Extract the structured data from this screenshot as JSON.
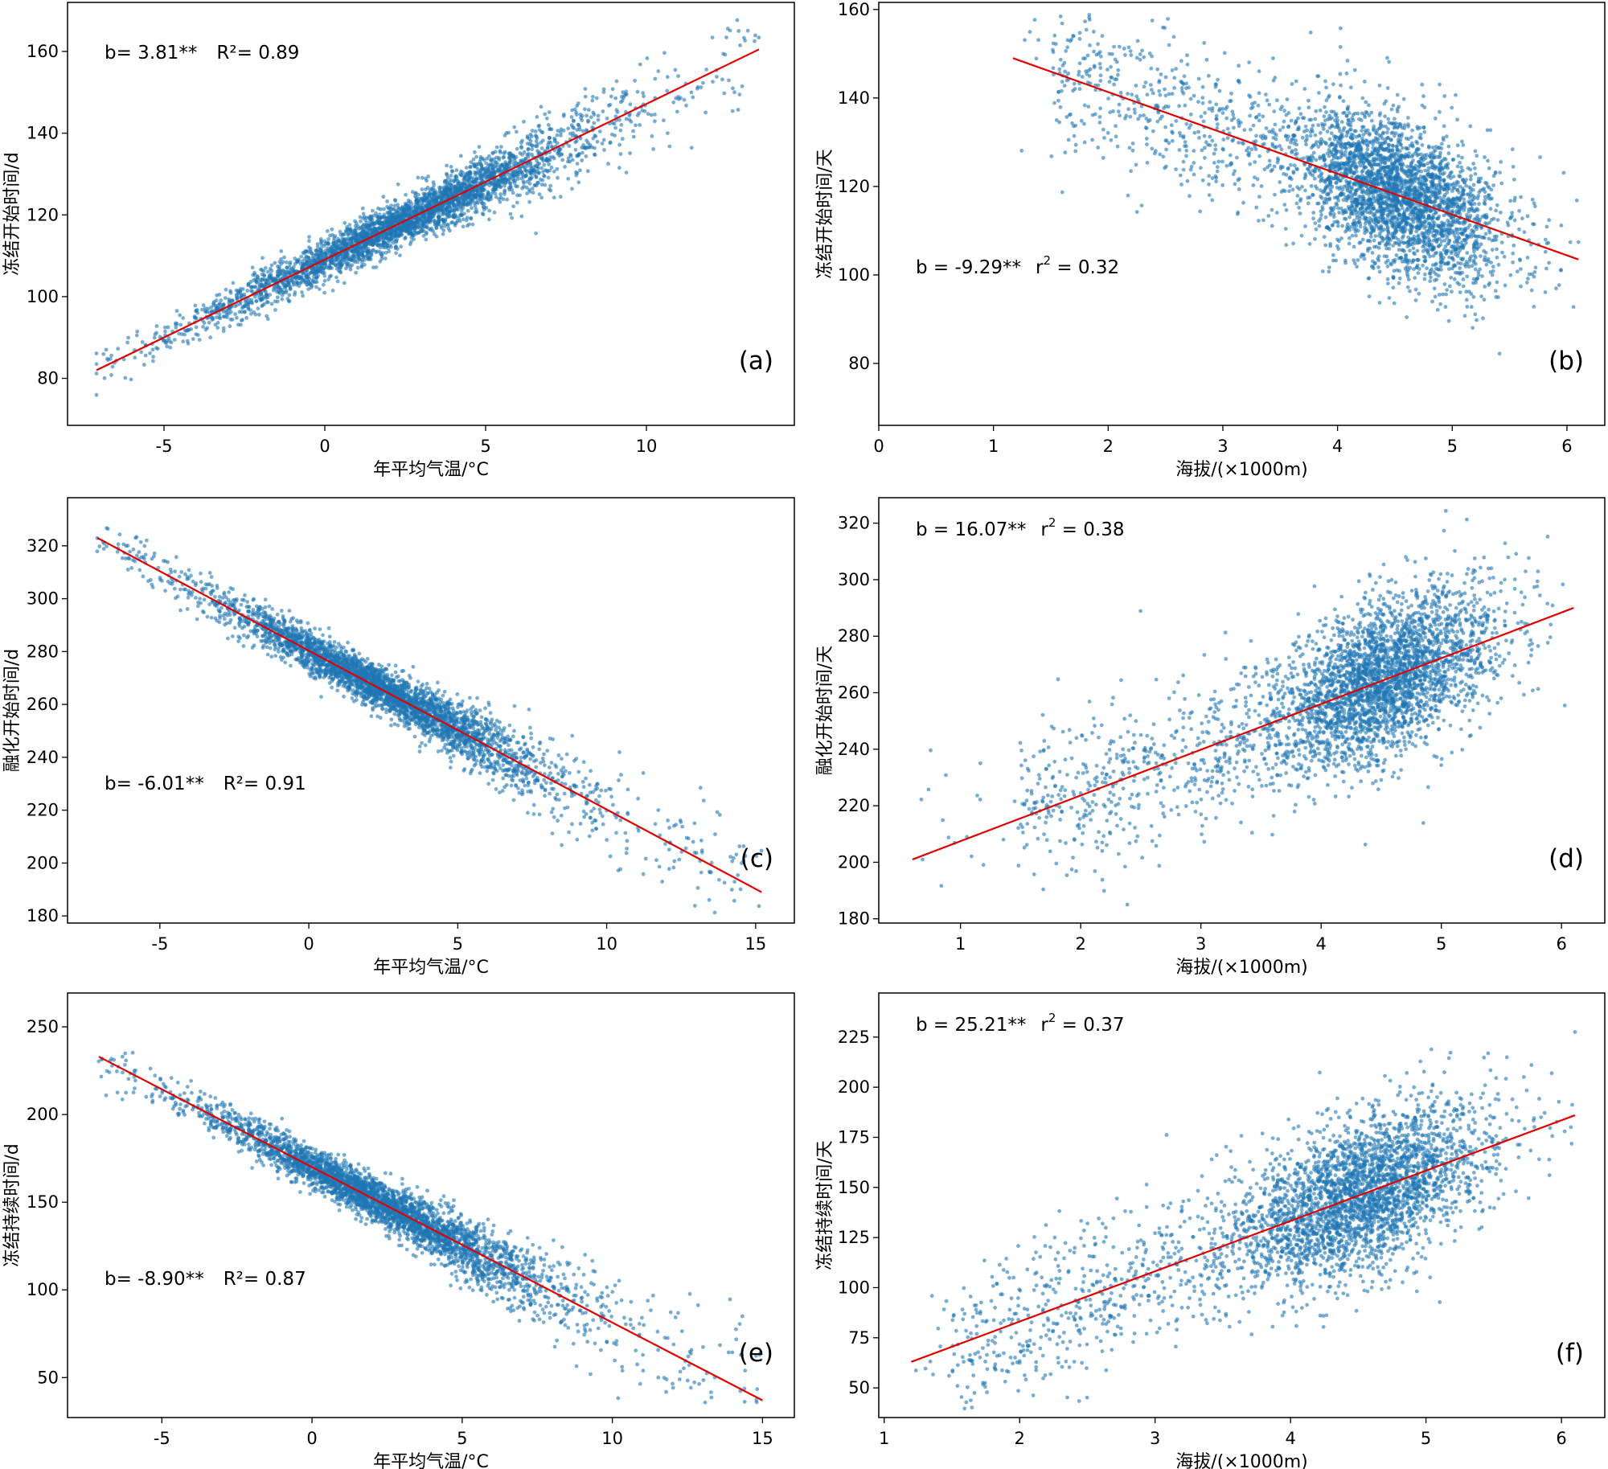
{
  "chart_data": [
    {
      "id": "a",
      "type": "scatter",
      "panel_label": "(a)",
      "xlabel": "年平均气温/°C",
      "ylabel": "冻结开始时间/d",
      "annotation": {
        "b": "b= 3.81**",
        "r2": "R²= 0.89"
      },
      "xlim": [
        -8.0,
        14.6
      ],
      "ylim": [
        68.5,
        172
      ],
      "xticks": [
        -5,
        0,
        5,
        10
      ],
      "yticks": [
        80,
        100,
        120,
        140,
        160
      ],
      "fit_line": [
        [
          -7.1,
          82
        ],
        [
          13.5,
          160.5
        ]
      ],
      "point_color": "#1f77b4",
      "line_color": "#e00000"
    },
    {
      "id": "b",
      "type": "scatter",
      "panel_label": "(b)",
      "xlabel": "海拔/(×1000m)",
      "ylabel": "冻结开始时间/天",
      "annotation": {
        "b": "b = -9.29**",
        "r2_base": "r",
        "r2_sup": "2",
        "r2_val": " = 0.32"
      },
      "xlim": [
        0,
        6.33
      ],
      "ylim": [
        66,
        161.6
      ],
      "xticks": [
        0,
        1,
        2,
        3,
        4,
        5,
        6
      ],
      "yticks": [
        80,
        100,
        120,
        140,
        160
      ],
      "fit_line": [
        [
          1.17,
          149
        ],
        [
          6.1,
          103.5
        ]
      ],
      "point_color": "#1f77b4",
      "line_color": "#e00000"
    },
    {
      "id": "c",
      "type": "scatter",
      "panel_label": "(c)",
      "xlabel": "年平均气温/°C",
      "ylabel": "融化开始时间/d",
      "annotation": {
        "b": "b= -6.01**",
        "r2": "R²= 0.91"
      },
      "xlim": [
        -8.1,
        16.3
      ],
      "ylim": [
        177.3,
        338.2
      ],
      "xticks": [
        -5,
        0,
        5,
        10,
        15
      ],
      "yticks": [
        180,
        200,
        220,
        240,
        260,
        280,
        300,
        320
      ],
      "fit_line": [
        [
          -7.1,
          323
        ],
        [
          15.2,
          189
        ]
      ],
      "point_color": "#1f77b4",
      "line_color": "#e00000"
    },
    {
      "id": "d",
      "type": "scatter",
      "panel_label": "(d)",
      "xlabel": "海拔/(×1000m)",
      "ylabel": "融化开始时间/天",
      "annotation": {
        "b": "b = 16.07**",
        "r2_base": "r",
        "r2_sup": "2",
        "r2_val": " = 0.38"
      },
      "xlim": [
        0.32,
        6.36
      ],
      "ylim": [
        178.5,
        329
      ],
      "xticks": [
        1,
        2,
        3,
        4,
        5,
        6
      ],
      "yticks": [
        180,
        200,
        220,
        240,
        260,
        280,
        300,
        320
      ],
      "fit_line": [
        [
          0.6,
          201
        ],
        [
          6.1,
          290
        ]
      ],
      "point_color": "#1f77b4",
      "line_color": "#e00000"
    },
    {
      "id": "e",
      "type": "scatter",
      "panel_label": "(e)",
      "xlabel": "年平均气温/°C",
      "ylabel": "冻结持续时间/d",
      "annotation": {
        "b": "b= -8.90**",
        "r2": "R²= 0.87"
      },
      "xlim": [
        -8.14,
        16.06
      ],
      "ylim": [
        27.2,
        269.3
      ],
      "xticks": [
        -5,
        0,
        5,
        10,
        15
      ],
      "yticks": [
        50,
        100,
        150,
        200,
        250
      ],
      "fit_line": [
        [
          -7.1,
          233
        ],
        [
          15,
          37
        ]
      ],
      "point_color": "#1f77b4",
      "line_color": "#e00000"
    },
    {
      "id": "f",
      "type": "scatter",
      "panel_label": "(f)",
      "xlabel": "海拔/(×1000m)",
      "ylabel": "冻结持续时间/天",
      "annotation": {
        "b": "b = 25.21**",
        "r2_base": "r",
        "r2_sup": "2",
        "r2_val": " = 0.37"
      },
      "xlim": [
        0.96,
        6.32
      ],
      "ylim": [
        35.2,
        247
      ],
      "xticks": [
        1,
        2,
        3,
        4,
        5,
        6
      ],
      "yticks": [
        50,
        75,
        100,
        125,
        150,
        175,
        200,
        225
      ],
      "fit_line": [
        [
          1.2,
          63
        ],
        [
          6.1,
          186
        ]
      ],
      "point_color": "#1f77b4",
      "line_color": "#e00000"
    }
  ]
}
